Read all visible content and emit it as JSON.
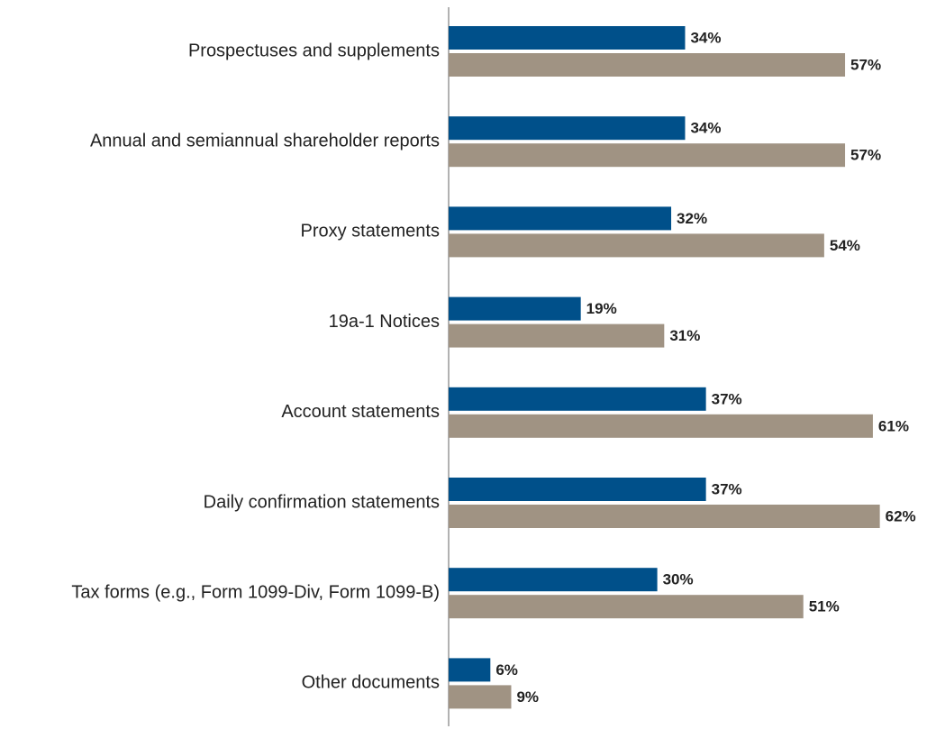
{
  "chart_data": {
    "type": "bar",
    "orientation": "horizontal",
    "categories": [
      "Prospectuses and supplements",
      "Annual and semiannual shareholder reports",
      "Proxy statements",
      "19a-1 Notices",
      "Account statements",
      "Daily confirmation statements",
      "Tax forms (e.g., Form 1099-Div, Form 1099-B)",
      "Other documents"
    ],
    "series": [
      {
        "color": "#00508a",
        "values": [
          34,
          34,
          32,
          19,
          37,
          37,
          30,
          6
        ],
        "value_labels": [
          "34%",
          "34%",
          "32%",
          "19%",
          "37%",
          "37%",
          "30%",
          "6%"
        ]
      },
      {
        "color": "#a09383",
        "values": [
          57,
          57,
          54,
          31,
          61,
          62,
          51,
          9
        ],
        "value_labels": [
          "57%",
          "57%",
          "54%",
          "31%",
          "61%",
          "62%",
          "51%",
          "9%"
        ]
      }
    ]
  }
}
